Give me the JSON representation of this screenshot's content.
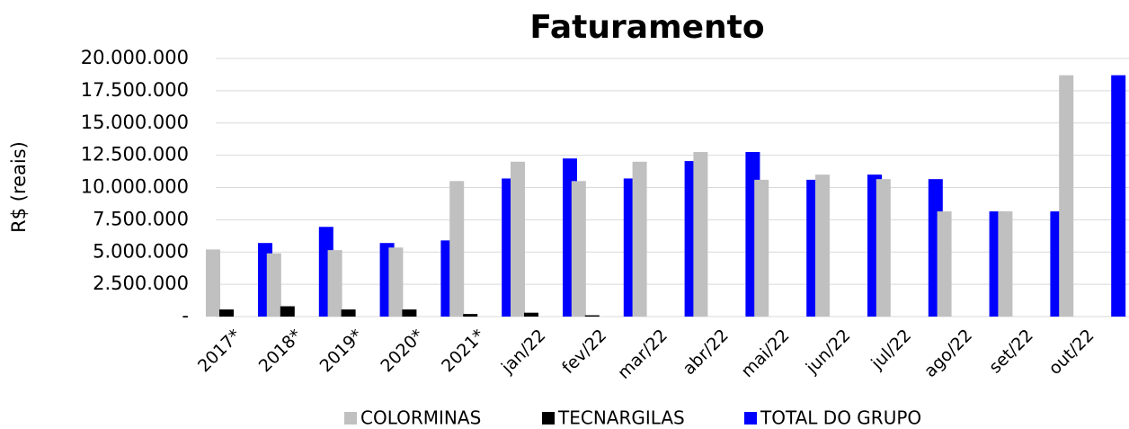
{
  "chart_data": {
    "type": "bar",
    "title": "Faturamento",
    "y_label": "R$ (reais)",
    "categories": [
      "2017*",
      "2018*",
      "2019*",
      "2020*",
      "2021*",
      "jan/22",
      "fev/22",
      "mar/22",
      "abr/22",
      "mai/22",
      "jun/22",
      "jul/22",
      "ago/22",
      "set/22",
      "out/22"
    ],
    "series": [
      {
        "name": "COLORMINAS",
        "color": "#c0c0c0",
        "values": [
          5200000,
          4900000,
          5150000,
          5350000,
          10500000,
          12000000,
          10500000,
          12000000,
          12750000,
          10600000,
          11000000,
          10650000,
          8150000,
          8150000,
          18700000
        ]
      },
      {
        "name": "TECNARGILAS",
        "color": "#000000",
        "values": [
          550000,
          800000,
          550000,
          550000,
          200000,
          300000,
          100000,
          0,
          0,
          0,
          0,
          0,
          0,
          0,
          0
        ]
      },
      {
        "name": "TOTAL DO GRUPO",
        "color": "#0000ff",
        "values": [
          5700000,
          6950000,
          5700000,
          5900000,
          10700000,
          12250000,
          10700000,
          12050000,
          12750000,
          10600000,
          11000000,
          10650000,
          8150000,
          8150000,
          18700000
        ]
      }
    ],
    "ylim": [
      0,
      20000000
    ],
    "yticks": [
      {
        "value": 0,
        "label": "-"
      },
      {
        "value": 2500000,
        "label": "2.500.000"
      },
      {
        "value": 5000000,
        "label": "5.000.000"
      },
      {
        "value": 7500000,
        "label": "7.500.000"
      },
      {
        "value": 10000000,
        "label": "10.000.000"
      },
      {
        "value": 12500000,
        "label": "12.500.000"
      },
      {
        "value": 15000000,
        "label": "15.000.000"
      },
      {
        "value": 17500000,
        "label": "17.500.000"
      },
      {
        "value": 20000000,
        "label": "20.000.000"
      }
    ],
    "grid": true
  }
}
